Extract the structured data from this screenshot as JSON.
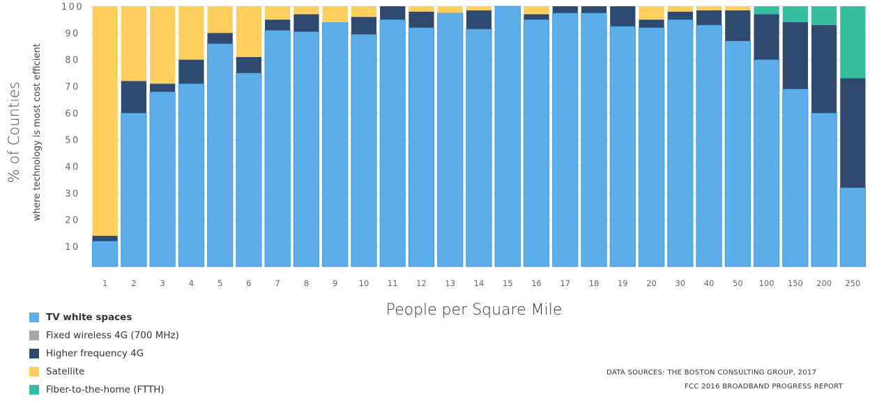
{
  "chart_data": {
    "type": "bar",
    "stacked": true,
    "title": "",
    "xlabel": "People per Square Mile",
    "ylabel": "% of Counties",
    "ylabel_sub": "where technology is most cost efficient",
    "ylim": [
      0,
      100
    ],
    "yticks": [
      "10",
      "20",
      "30",
      "40",
      "50",
      "60",
      "70",
      "80",
      "90",
      "100"
    ],
    "grid": true,
    "legend_position": "bottom-left",
    "categories": [
      "1",
      "2",
      "3",
      "4",
      "5",
      "6",
      "7",
      "8",
      "9",
      "10",
      "11",
      "12",
      "13",
      "14",
      "15",
      "16",
      "17",
      "18",
      "19",
      "20",
      "30",
      "40",
      "50",
      "100",
      "150",
      "200",
      "250"
    ],
    "series": [
      {
        "name": "TV white spaces",
        "color": "#5DADE8",
        "values": [
          12,
          60,
          68,
          71,
          86,
          75,
          91,
          90.5,
          94,
          89.5,
          95,
          92,
          97.5,
          91.5,
          100,
          95,
          97.5,
          97.5,
          92.5,
          92,
          95,
          93,
          87,
          80,
          69,
          60,
          32
        ]
      },
      {
        "name": "Fixed wireless 4G (700 MHz)",
        "color": "#A8A8A8",
        "values": [
          0,
          0,
          0,
          0,
          0,
          0,
          0,
          0,
          0,
          0,
          0,
          0,
          0,
          0,
          0,
          0,
          0,
          0,
          0,
          0,
          0,
          0,
          0,
          0,
          0,
          0,
          0
        ]
      },
      {
        "name": "Higher frequency 4G",
        "color": "#2F4A6E",
        "values": [
          2,
          12,
          3,
          9,
          4,
          6,
          4,
          6.5,
          0,
          6.5,
          5,
          6,
          0,
          7,
          0,
          2,
          2.5,
          2.5,
          7.5,
          3,
          3,
          5.5,
          11.5,
          17,
          25,
          33,
          41
        ]
      },
      {
        "name": "Satellite",
        "color": "#FECF5C",
        "values": [
          86,
          28,
          29,
          20,
          10,
          19,
          5,
          3,
          6,
          4,
          0,
          2,
          2.5,
          1.5,
          0,
          3,
          0,
          0,
          0,
          5,
          2,
          1.5,
          1.5,
          0,
          0,
          0,
          0
        ]
      },
      {
        "name": "Fiber-to-the-home  (FTTH)",
        "color": "#35BFA0",
        "values": [
          0,
          0,
          0,
          0,
          0,
          0,
          0,
          0,
          0,
          0,
          0,
          0,
          0,
          0,
          0,
          0,
          0,
          0,
          0,
          0,
          0,
          0,
          0,
          3,
          6,
          7,
          27
        ]
      }
    ]
  },
  "sources": {
    "line1": "DATA SOURCES: THE BOSTON CONSULTING GROUP, 2017",
    "line2": "FCC 2016 BROADBAND PROGRESS REPORT"
  }
}
